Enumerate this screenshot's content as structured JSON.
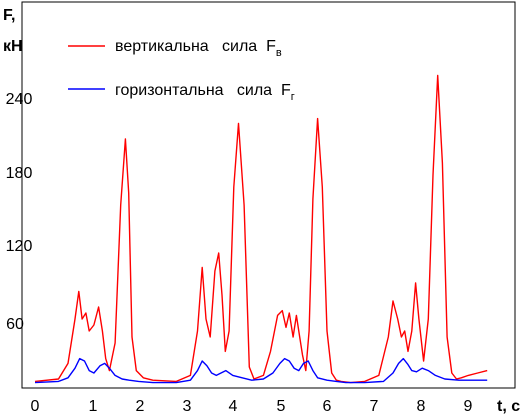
{
  "chart_data": {
    "type": "line",
    "ylabel": "F,",
    "ylabel_unit": "кН",
    "xlabel": "t, с",
    "xlim": [
      0,
      9.6
    ],
    "ylim": [
      0,
      275
    ],
    "x_ticks": [
      "0",
      "1",
      "2",
      "3",
      "4",
      "5",
      "6",
      "7",
      "8",
      "9"
    ],
    "y_ticks": [
      "60",
      "120",
      "180",
      "240"
    ],
    "grid": false,
    "legend_position": "top-left",
    "series": [
      {
        "name": "вертикальна   сила  F",
        "name_subscript": "в",
        "color": "#ff0000",
        "x": [
          0.0,
          0.5,
          0.7,
          0.85,
          0.93,
          1.0,
          1.08,
          1.15,
          1.25,
          1.35,
          1.43,
          1.5,
          1.58,
          1.7,
          1.82,
          1.92,
          1.99,
          2.06,
          2.15,
          2.3,
          2.5,
          3.0,
          3.3,
          3.45,
          3.55,
          3.63,
          3.72,
          3.82,
          3.9,
          3.97,
          4.04,
          4.12,
          4.22,
          4.32,
          4.44,
          4.55,
          4.65,
          4.85,
          5.0,
          5.15,
          5.25,
          5.33,
          5.4,
          5.48,
          5.55,
          5.62,
          5.68,
          5.75,
          5.82,
          5.9,
          6.0,
          6.1,
          6.2,
          6.3,
          6.4,
          6.5,
          6.7,
          7.0,
          7.3,
          7.5,
          7.6,
          7.7,
          7.78,
          7.85,
          7.92,
          8.0,
          8.08,
          8.15,
          8.25,
          8.35,
          8.45,
          8.55,
          8.65,
          8.75,
          8.85,
          8.95,
          9.05,
          9.2,
          9.4,
          9.6
        ],
        "values": [
          3,
          5,
          18,
          55,
          78,
          55,
          60,
          45,
          50,
          65,
          45,
          22,
          12,
          35,
          150,
          205,
          160,
          40,
          12,
          6,
          4,
          3,
          8,
          45,
          98,
          55,
          40,
          95,
          110,
          75,
          28,
          45,
          165,
          218,
          150,
          15,
          5,
          8,
          28,
          58,
          62,
          48,
          60,
          40,
          58,
          40,
          25,
          12,
          45,
          155,
          222,
          165,
          45,
          10,
          4,
          3,
          2,
          3,
          8,
          40,
          70,
          55,
          40,
          45,
          28,
          45,
          85,
          55,
          20,
          55,
          175,
          258,
          185,
          40,
          10,
          5,
          6,
          8,
          10,
          12
        ]
      },
      {
        "name": "горизонтальна   сила  F",
        "name_subscript": "г",
        "color": "#0000ff",
        "x": [
          0.0,
          0.5,
          0.7,
          0.85,
          0.95,
          1.05,
          1.15,
          1.25,
          1.38,
          1.48,
          1.58,
          1.7,
          1.85,
          2.0,
          2.2,
          2.5,
          3.0,
          3.3,
          3.45,
          3.55,
          3.65,
          3.75,
          3.85,
          3.95,
          4.05,
          4.2,
          4.4,
          4.6,
          4.85,
          5.05,
          5.2,
          5.3,
          5.4,
          5.5,
          5.6,
          5.7,
          5.8,
          5.9,
          6.0,
          6.2,
          6.4,
          6.6,
          7.0,
          7.4,
          7.6,
          7.72,
          7.82,
          7.92,
          8.0,
          8.1,
          8.22,
          8.35,
          8.5,
          8.7,
          9.0,
          9.3,
          9.6
        ],
        "values": [
          2,
          3,
          6,
          14,
          22,
          20,
          12,
          10,
          16,
          18,
          14,
          8,
          5,
          4,
          3,
          2,
          2,
          4,
          12,
          20,
          16,
          10,
          8,
          10,
          12,
          8,
          6,
          4,
          5,
          10,
          18,
          22,
          20,
          14,
          12,
          18,
          20,
          12,
          6,
          4,
          3,
          2,
          2,
          3,
          10,
          18,
          22,
          17,
          12,
          11,
          14,
          12,
          8,
          5,
          4,
          4,
          4
        ]
      }
    ]
  }
}
